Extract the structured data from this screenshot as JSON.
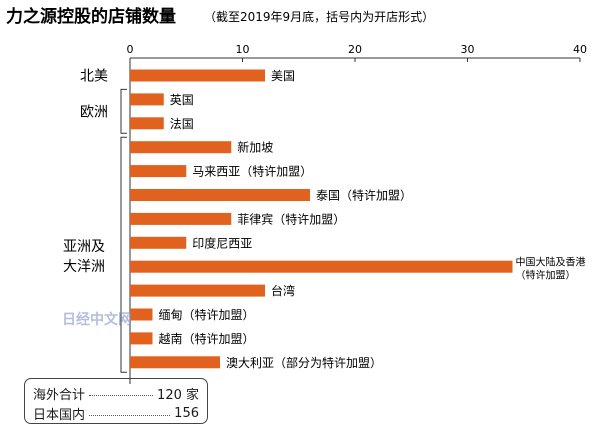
{
  "chart_data": {
    "type": "bar",
    "orientation": "horizontal",
    "title": "力之源控股的店铺数量",
    "subtitle": "（截至2019年9月底，括号内为开店形式）",
    "xlim": [
      0,
      40
    ],
    "xticks": [
      0,
      10,
      20,
      30,
      40
    ],
    "grid": false,
    "bar_color": "#e0621e",
    "categories": [
      "美国",
      "英国",
      "法国",
      "新加坡",
      "马来西亚（特许加盟）",
      "泰国（特许加盟）",
      "菲律宾（特许加盟）",
      "印度尼西亚",
      "中国大陆及香港",
      "台湾",
      "缅甸（特许加盟）",
      "越南（特许加盟）",
      "澳大利亚（部分为特许加盟）"
    ],
    "values": [
      12,
      3,
      3,
      9,
      5,
      16,
      9,
      5,
      34,
      12,
      2,
      2,
      8
    ],
    "value_notes": [
      "",
      "",
      "",
      "",
      "",
      "",
      "",
      "",
      "（特许加盟）",
      "",
      "",
      "",
      ""
    ],
    "regions": [
      {
        "label": "北美",
        "start": 0,
        "end": 0
      },
      {
        "label": "欧洲",
        "start": 1,
        "end": 2
      },
      {
        "label": "亚洲及",
        "label2": "大洋洲",
        "start": 3,
        "end": 12
      }
    ]
  },
  "summary": {
    "overseas_label": "海外合计",
    "overseas_value": "120 家",
    "japan_label": "日本国内",
    "japan_value": "156"
  },
  "watermark": "日经中文网"
}
